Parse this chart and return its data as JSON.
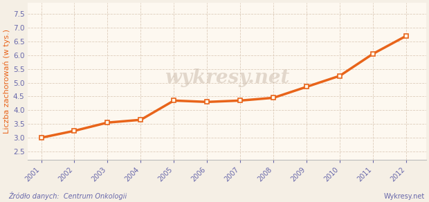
{
  "years": [
    2001,
    2002,
    2003,
    2004,
    2005,
    2006,
    2007,
    2008,
    2009,
    2010,
    2011,
    2012
  ],
  "values": [
    3.0,
    3.25,
    3.55,
    3.65,
    4.35,
    4.3,
    4.35,
    4.45,
    4.85,
    5.25,
    6.05,
    6.7
  ],
  "line_color": "#E8641A",
  "marker_face": "#FFF5E8",
  "plot_bg_color": "#FDF8F0",
  "outer_bg_color": "#F5EFE5",
  "grid_color": "#DDCCBB",
  "ylabel": "Liczba zachorowań (w tys.)",
  "ylabel_color": "#E8641A",
  "source_text": "Źródło danych:  Centrum Onkologii",
  "watermark": "wykresy.net",
  "watermark_right": "Wykresy.net",
  "ylim": [
    2.2,
    7.9
  ],
  "yticks": [
    2.5,
    3.0,
    3.5,
    4.0,
    4.5,
    5.0,
    5.5,
    6.0,
    6.5,
    7.0,
    7.5
  ],
  "axis_label_color": "#6666AA",
  "source_color": "#6666AA",
  "line_width": 2.5
}
